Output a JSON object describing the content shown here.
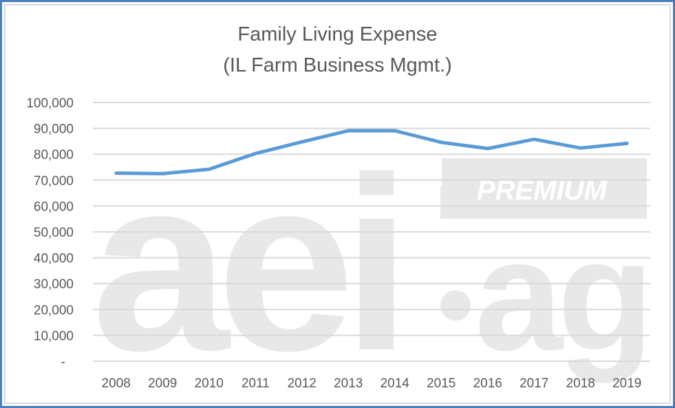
{
  "chart_data": {
    "type": "line",
    "title": "Family Living Expense",
    "subtitle": "(IL Farm Business Mgmt.)",
    "xlabel": "",
    "ylabel": "",
    "categories": [
      "2008",
      "2009",
      "2010",
      "2011",
      "2012",
      "2013",
      "2014",
      "2015",
      "2016",
      "2017",
      "2018",
      "2019"
    ],
    "series": [
      {
        "name": "Family Living Expense",
        "color": "#5b9bd5",
        "values": [
          72700,
          72500,
          74200,
          80300,
          84800,
          89100,
          89100,
          84600,
          82200,
          85800,
          82400,
          84200
        ]
      }
    ],
    "ylim": [
      0,
      100000
    ],
    "yticks": [
      "-",
      "10,000",
      "20,000",
      "30,000",
      "40,000",
      "50,000",
      "60,000",
      "70,000",
      "80,000",
      "90,000",
      "100,000"
    ],
    "grid": true,
    "legend": "none"
  },
  "watermark": {
    "text": "aei.ag",
    "badge": "PREMIUM"
  },
  "colors": {
    "line": "#5b9bd5",
    "grid": "#d9d9d9",
    "frame": "#4a7ebb",
    "text": "#595959",
    "watermark": "#e8e8e9"
  }
}
